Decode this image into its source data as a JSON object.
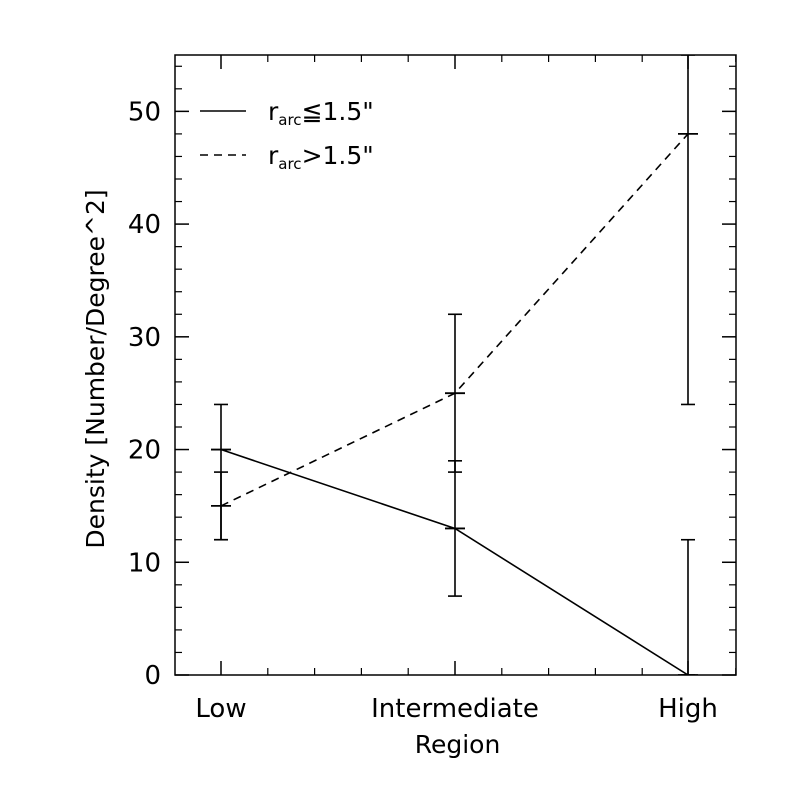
{
  "chart_data": {
    "type": "line",
    "title": "",
    "xlabel": "Region",
    "ylabel": "Density [Number/Degree^2]",
    "categories": [
      "Low",
      "Intermediate",
      "High"
    ],
    "ylim": [
      0,
      55
    ],
    "yticks": [
      0,
      10,
      20,
      30,
      40,
      50
    ],
    "grid": false,
    "legend_position": "top-left",
    "series": [
      {
        "name": "r_arc ≦ 1.5\"",
        "legend_main": "r",
        "legend_sub": "arc",
        "legend_rest": "≦1.5\"",
        "style": "solid",
        "values": [
          20,
          13,
          0
        ],
        "err_low": [
          12,
          7,
          0
        ],
        "err_high": [
          24,
          19,
          12
        ]
      },
      {
        "name": "r_arc > 1.5\"",
        "legend_main": "r",
        "legend_sub": "arc",
        "legend_rest": ">1.5\"",
        "style": "dashed",
        "values": [
          15,
          25,
          48
        ],
        "err_low": [
          12,
          18,
          24
        ],
        "err_high": [
          18,
          32,
          55
        ]
      }
    ],
    "colors": {
      "line": "#000000",
      "background": "#ffffff"
    }
  }
}
